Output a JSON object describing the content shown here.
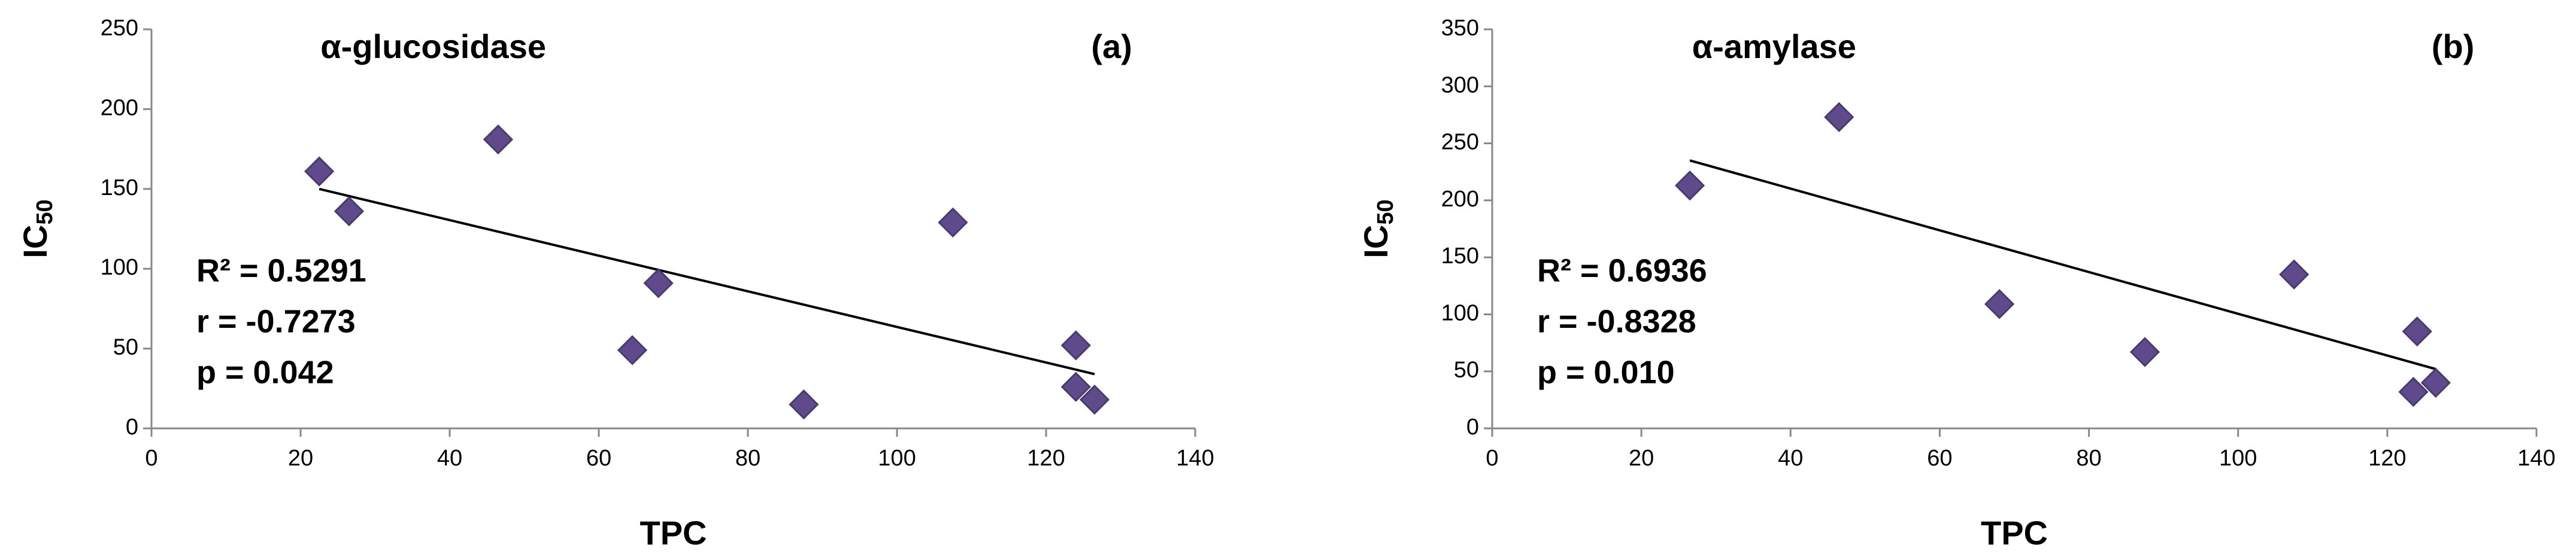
{
  "chart_data": [
    {
      "type": "scatter",
      "title": "α-glucosidase",
      "panel_label": "(a)",
      "x_label": "TPC",
      "y_label": "IC",
      "y_label_sub": "50",
      "annotations": [
        "R² = 0.5291",
        "r = -0.7273",
        "p = 0.042"
      ],
      "series": [
        {
          "color": "#5f4b8b",
          "x": [
            22.5,
            26.5,
            46.5,
            64.5,
            68,
            87.5,
            107.5,
            124,
            124,
            126.5
          ],
          "values": [
            161,
            136,
            181,
            49,
            91,
            15,
            129,
            52,
            26,
            18
          ]
        }
      ],
      "trendline": {
        "x": [
          22.5,
          126.5
        ],
        "values": [
          150,
          34
        ]
      },
      "xlim": [
        0,
        140
      ],
      "xticks": [
        0,
        20,
        40,
        60,
        80,
        100,
        120,
        140
      ],
      "ylim": [
        0,
        250
      ],
      "yticks": [
        0,
        50,
        100,
        150,
        200,
        250
      ]
    },
    {
      "type": "scatter",
      "title": "α-amylase",
      "panel_label": "(b)",
      "x_label": "TPC",
      "y_label": "IC",
      "y_label_sub": "50",
      "annotations": [
        "R² = 0.6936",
        "r = -0.8328",
        "p = 0.010"
      ],
      "series": [
        {
          "color": "#5f4b8b",
          "x": [
            26.5,
            46.5,
            68,
            87.5,
            107.5,
            124,
            123.5,
            126.5
          ],
          "values": [
            213,
            273,
            109,
            67,
            135,
            85,
            32,
            40
          ]
        }
      ],
      "trendline": {
        "x": [
          26.5,
          126.5
        ],
        "values": [
          235,
          52
        ]
      },
      "xlim": [
        0,
        140
      ],
      "xticks": [
        0,
        20,
        40,
        60,
        80,
        100,
        120,
        140
      ],
      "ylim": [
        0,
        350
      ],
      "yticks": [
        0,
        50,
        100,
        150,
        200,
        250,
        300,
        350
      ]
    }
  ]
}
